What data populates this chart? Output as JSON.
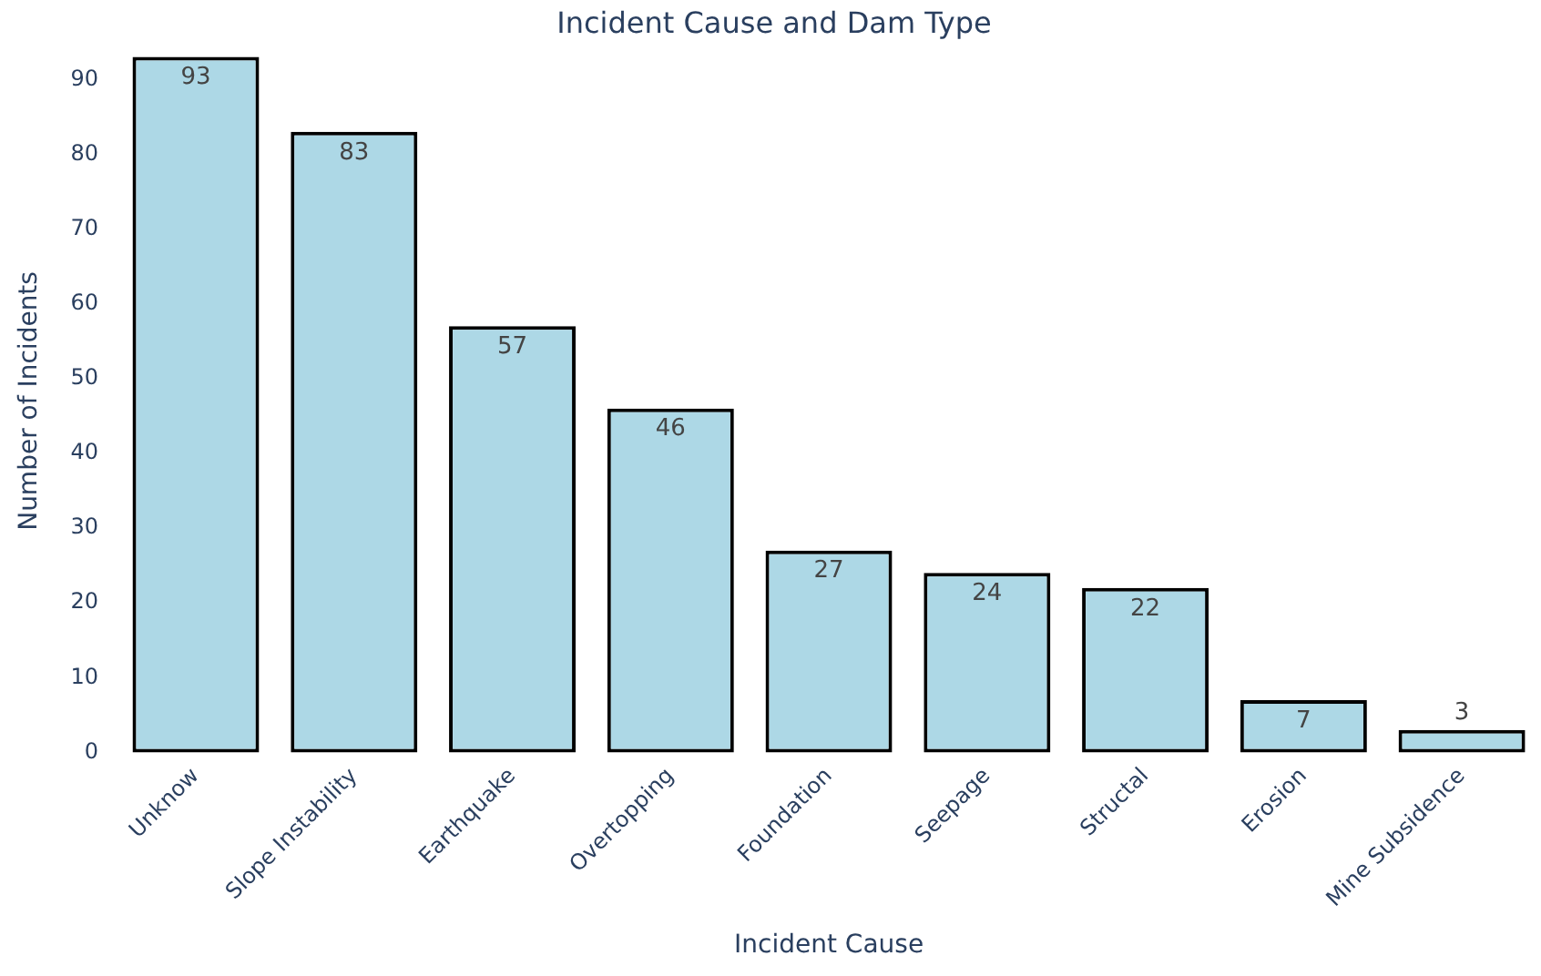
{
  "chart_data": {
    "type": "bar",
    "title": "Incident Cause and Dam Type",
    "xlabel": "Incident Cause",
    "ylabel": "Number of Incidents",
    "categories": [
      "Unknow",
      "Slope Instability",
      "Earthquake",
      "Overtopping",
      "Foundation",
      "Seepage",
      "Structal",
      "Erosion",
      "Mine Subsidence"
    ],
    "values": [
      93,
      83,
      57,
      46,
      27,
      24,
      22,
      7,
      3
    ],
    "color": "#add8e6",
    "ylim": [
      0,
      94
    ],
    "yticks": [
      0,
      10,
      20,
      30,
      40,
      50,
      60,
      70,
      80,
      90
    ],
    "grid": false,
    "legend": false,
    "data_labels": true
  }
}
